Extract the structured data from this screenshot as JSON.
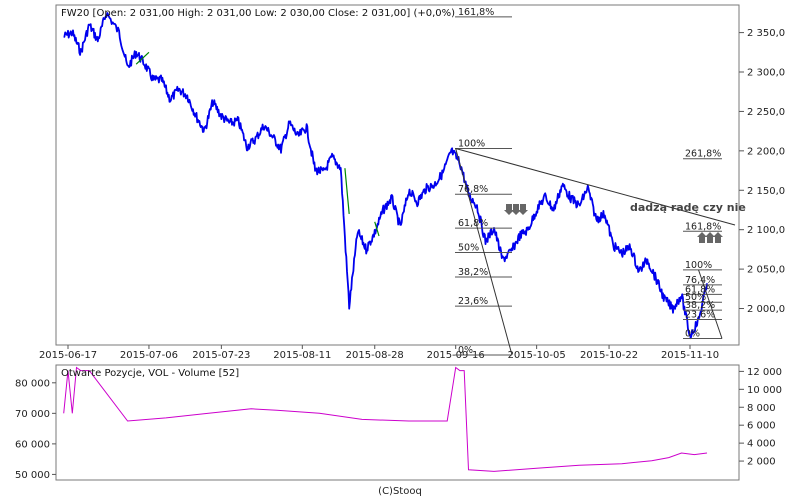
{
  "chart_data": [
    {
      "type": "line",
      "title": "FW20 [Open: 2 031,00  High: 2 031,00  Low: 2 030,00  Close: 2 031,00] (+0,0%)",
      "x_ticks": [
        "2015-06-17",
        "2015-07-06",
        "2015-07-23",
        "2015-08-11",
        "2015-08-28",
        "2015-09-16",
        "2015-10-05",
        "2015-10-22",
        "2015-11-10"
      ],
      "y_ticks": [
        "2 350,0",
        "2 300,0",
        "2 250,0",
        "2 200,0",
        "2 150,0",
        "2 100,0",
        "2 050,0",
        "2 000,0"
      ],
      "y_tick_values": [
        2350,
        2300,
        2250,
        2200,
        2150,
        2100,
        2050,
        2000
      ],
      "ylim": [
        1955,
        2385
      ],
      "colors": {
        "price": "#0000ee",
        "fib": "#555555",
        "trend": "#333333",
        "arrow": "#666666",
        "green_segment": "#008800"
      },
      "series": [
        {
          "x": [
            "2015-06-16",
            "2015-06-18",
            "2015-06-20",
            "2015-06-22",
            "2015-06-24",
            "2015-06-26",
            "2015-06-29",
            "2015-07-01",
            "2015-07-03",
            "2015-07-05",
            "2015-07-07",
            "2015-07-09",
            "2015-07-11",
            "2015-07-13",
            "2015-07-15",
            "2015-07-17",
            "2015-07-19",
            "2015-07-21",
            "2015-07-23",
            "2015-07-25",
            "2015-07-27",
            "2015-07-29",
            "2015-07-31",
            "2015-08-02",
            "2015-08-04",
            "2015-08-06",
            "2015-08-08",
            "2015-08-10",
            "2015-08-12",
            "2015-08-14",
            "2015-08-16",
            "2015-08-18",
            "2015-08-20",
            "2015-08-22",
            "2015-08-24",
            "2015-08-26",
            "2015-08-28",
            "2015-08-30",
            "2015-09-01",
            "2015-09-03",
            "2015-09-05",
            "2015-09-07",
            "2015-09-09",
            "2015-09-11",
            "2015-09-13",
            "2015-09-15",
            "2015-09-17",
            "2015-09-19",
            "2015-09-21",
            "2015-09-23",
            "2015-09-25",
            "2015-09-27",
            "2015-09-29",
            "2015-10-01",
            "2015-10-03",
            "2015-10-05",
            "2015-10-07",
            "2015-10-09",
            "2015-10-11",
            "2015-10-13",
            "2015-10-15",
            "2015-10-17",
            "2015-10-19",
            "2015-10-21",
            "2015-10-23",
            "2015-10-25",
            "2015-10-27",
            "2015-10-29",
            "2015-10-31",
            "2015-11-02",
            "2015-11-04",
            "2015-11-06",
            "2015-11-08",
            "2015-11-10",
            "2015-11-12",
            "2015-11-14"
          ],
          "values": [
            2345,
            2350,
            2325,
            2360,
            2340,
            2375,
            2350,
            2305,
            2325,
            2310,
            2290,
            2290,
            2265,
            2278,
            2270,
            2245,
            2225,
            2262,
            2244,
            2235,
            2238,
            2205,
            2215,
            2232,
            2218,
            2202,
            2235,
            2218,
            2230,
            2176,
            2173,
            2192,
            2178,
            2003,
            2098,
            2075,
            2096,
            2125,
            2140,
            2103,
            2150,
            2135,
            2152,
            2157,
            2172,
            2200,
            2185,
            2145,
            2130,
            2085,
            2102,
            2062,
            2072,
            2092,
            2100,
            2125,
            2142,
            2125,
            2157,
            2140,
            2130,
            2153,
            2113,
            2120,
            2080,
            2070,
            2078,
            2047,
            2062,
            2038,
            2012,
            2000,
            2017,
            1965,
            1985,
            2032
          ]
        }
      ],
      "fib_left": [
        {
          "label": "161,8%",
          "value": 2370
        },
        {
          "label": "100%",
          "value": 2203
        },
        {
          "label": "76,8%",
          "value": 2145
        },
        {
          "label": "61,8%",
          "value": 2102
        },
        {
          "label": "50%",
          "value": 2071
        },
        {
          "label": "38,2%",
          "value": 2040
        },
        {
          "label": "23,6%",
          "value": 2003
        },
        {
          "label": "0%",
          "value": 1941
        }
      ],
      "fib_right": [
        {
          "label": "261,8%",
          "value": 2190
        },
        {
          "label": "161,8%",
          "value": 2098
        },
        {
          "label": "100%",
          "value": 2049
        },
        {
          "label": "76,4%",
          "value": 2030
        },
        {
          "label": "61,8%",
          "value": 2018
        },
        {
          "label": "50%",
          "value": 2008
        },
        {
          "label": "38,2%",
          "value": 1998
        },
        {
          "label": "23,6%",
          "value": 1986
        },
        {
          "label": "0%",
          "value": 1962
        }
      ],
      "annotation": "dadzą radę czy nie"
    },
    {
      "type": "line",
      "title": "Otwarte Pozycje, VOL - Volume [52]",
      "left_ticks": [
        "80 000",
        "70 000",
        "60 000",
        "50 000"
      ],
      "left_tick_values": [
        80000,
        70000,
        60000,
        50000
      ],
      "left_lim": [
        48500,
        85500
      ],
      "right_ticks": [
        "12 000",
        "10 000",
        "8 000",
        "6 000",
        "4 000",
        "2 000"
      ],
      "right_tick_values": [
        12000,
        10000,
        8000,
        6000,
        4000,
        2000
      ],
      "right_lim": [
        0,
        12600
      ],
      "colors": {
        "open_interest": "#cc00cc",
        "volume": "#0000ee"
      },
      "series": [
        {
          "name": "Otwarte Pozycje",
          "x": [
            "2015-06-16",
            "2015-06-17",
            "2015-06-18",
            "2015-06-19",
            "2015-06-20",
            "2015-06-22",
            "2015-07-01",
            "2015-07-10",
            "2015-07-20",
            "2015-07-30",
            "2015-08-05",
            "2015-08-15",
            "2015-08-25",
            "2015-09-05",
            "2015-09-10",
            "2015-09-14",
            "2015-09-16",
            "2015-09-17",
            "2015-09-18",
            "2015-09-19",
            "2015-09-25",
            "2015-10-05",
            "2015-10-15",
            "2015-10-25",
            "2015-11-01",
            "2015-11-05",
            "2015-11-08",
            "2015-11-11",
            "2015-11-14"
          ],
          "values": [
            70000,
            84000,
            70000,
            85000,
            84000,
            84000,
            67500,
            68500,
            70000,
            71500,
            71000,
            70000,
            68000,
            67500,
            67500,
            67500,
            85000,
            84000,
            84000,
            51500,
            51000,
            52000,
            53000,
            53500,
            54500,
            55500,
            57000,
            56500,
            57000
          ]
        }
      ],
      "footer": "(C)Stooq"
    }
  ]
}
